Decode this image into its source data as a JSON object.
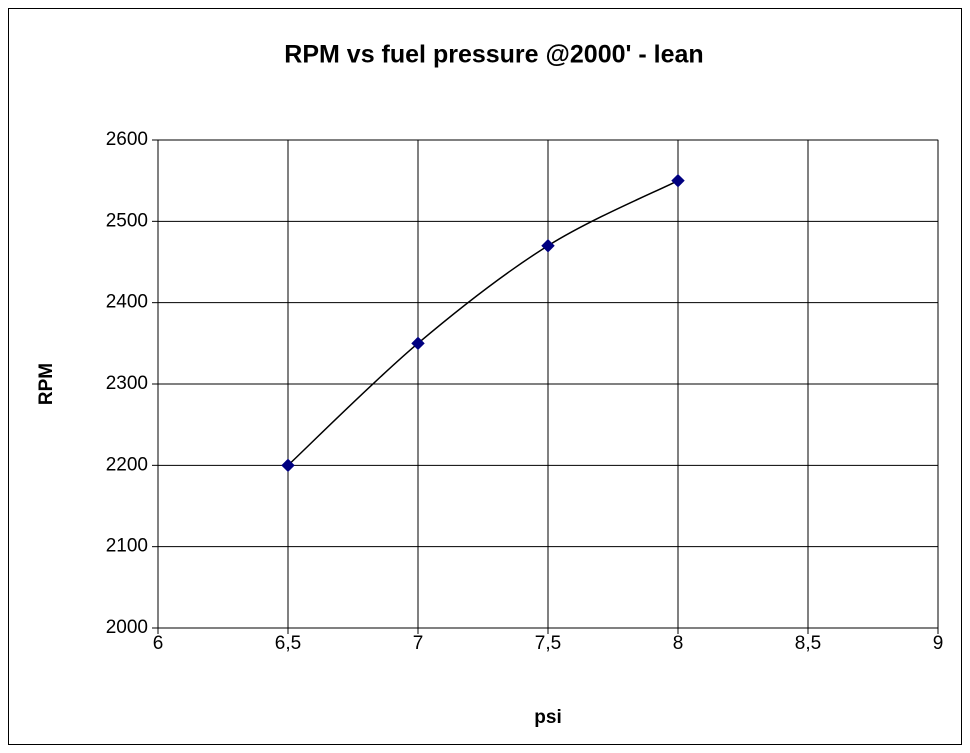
{
  "chart_data": {
    "type": "scatter-smooth",
    "title": "RPM vs fuel pressure @2000' - lean",
    "x_label": "psi",
    "y_label": "RPM",
    "series": [
      {
        "name": "RPM",
        "color": "#000080",
        "line_color": "#000000",
        "x": [
          6.5,
          7,
          7.5,
          8
        ],
        "values": [
          2200,
          2350,
          2470,
          2550
        ]
      }
    ],
    "xlim": [
      6,
      9
    ],
    "xticks": [
      6,
      {
        "value": 6.5,
        "label": "6,5"
      },
      7,
      {
        "value": 7.5,
        "label": "7,5"
      },
      8,
      {
        "value": 8.5,
        "label": "8,5"
      },
      9
    ],
    "ylim": [
      2000,
      2600
    ],
    "yticks": [
      2000,
      2100,
      2200,
      2300,
      2400,
      2500,
      2600
    ],
    "grid": true
  }
}
